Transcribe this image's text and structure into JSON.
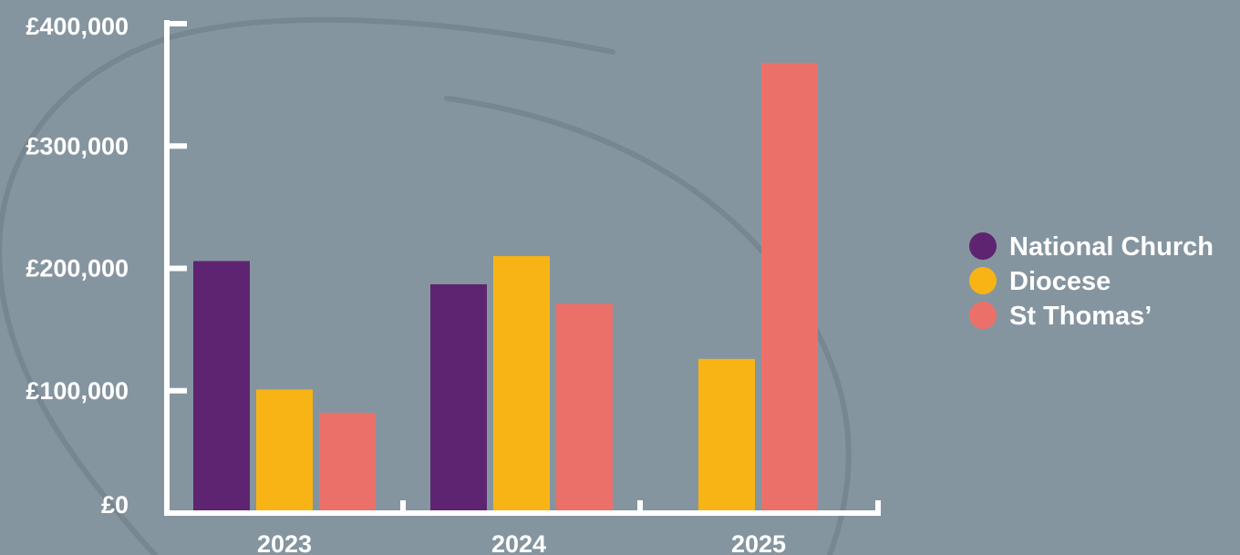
{
  "chart_data": {
    "type": "bar",
    "title": "",
    "xlabel": "",
    "ylabel": "",
    "categories": [
      "2023",
      "2024",
      "2025"
    ],
    "series": [
      {
        "name": "National Church",
        "color": "#5e2471",
        "values": [
          206000,
          187000,
          null
        ]
      },
      {
        "name": "Diocese",
        "color": "#f8b414",
        "values": [
          101000,
          210000,
          126000
        ]
      },
      {
        "name": "St Thomas’",
        "color": "#ec706a",
        "values": [
          82000,
          171000,
          368000
        ]
      }
    ],
    "ylim": [
      0,
      400000
    ],
    "yticks": [
      0,
      100000,
      200000,
      300000,
      400000
    ],
    "ytick_labels": [
      "£0",
      "£100,000",
      "£200,000",
      "£300,000",
      "£400,000"
    ],
    "grid": false,
    "legend_position": "right"
  },
  "style": {
    "background": "#85959f",
    "axis_color": "#ffffff",
    "text_color": "#ffffff",
    "decoration_color": "#77868f"
  }
}
